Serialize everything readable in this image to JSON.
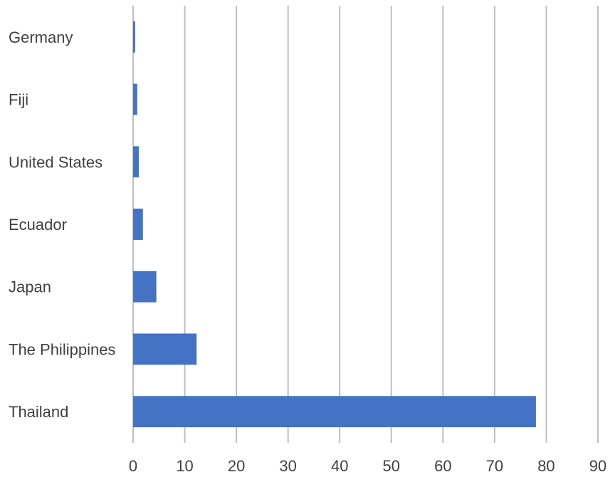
{
  "chart_data": {
    "type": "bar",
    "orientation": "horizontal",
    "categories": [
      "Thailand",
      "The Philippines",
      "Japan",
      "Ecuador",
      "United States",
      "Fiji",
      "Germany"
    ],
    "values": [
      78,
      12.3,
      4.5,
      1.9,
      1.1,
      0.8,
      0.4
    ],
    "xlim": [
      0,
      90
    ],
    "xticks": [
      "0",
      "10",
      "20",
      "30",
      "40",
      "50",
      "60",
      "70",
      "80",
      "90"
    ],
    "grid": true,
    "legend": "none",
    "colors": {
      "bar": "#4472C4",
      "grid": "#BFBFBF",
      "text": "#404040"
    }
  }
}
